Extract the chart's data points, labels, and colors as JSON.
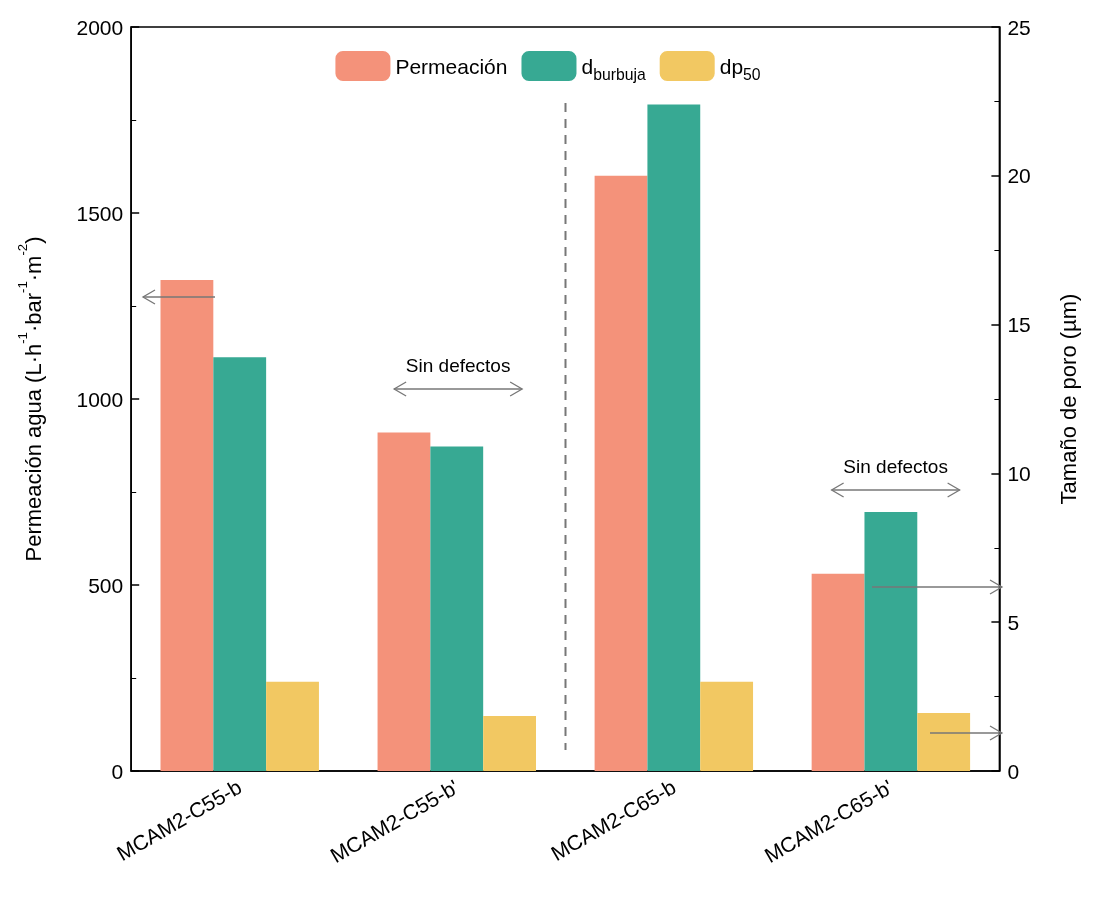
{
  "chart_data": {
    "type": "bar",
    "xlabel": null,
    "ylabel": "Permeación agua (L·h$^{-1}$·bar$^{-1}$·m$^{-2}$)",
    "y2label": "Tamaño de poro (µm)",
    "categories": [
      "MCAM2-C55-b",
      "MCAM2-C55-b'",
      "MCAM2-C65-b",
      "MCAM2-C65-b'"
    ],
    "series": [
      {
        "name": "Permeación",
        "color": "#f4927a",
        "values": [
          1320,
          910,
          1600,
          530
        ]
      },
      {
        "name": "d$_{burbuja}$",
        "color": "#37a993",
        "axis": "y2",
        "values": [
          13.9,
          10.9,
          22.4,
          8.7
        ]
      },
      {
        "name": "dp$_{50}$",
        "color": "#f2c862",
        "axis": "y2",
        "values": [
          3.0,
          1.85,
          3.0,
          1.95
        ]
      }
    ],
    "ylim": [
      0,
      2000
    ],
    "yticks": [
      0,
      500,
      1000,
      1500,
      2000
    ],
    "y2lim": [
      0,
      25
    ],
    "y2ticks": [
      0,
      5,
      10,
      15,
      20,
      25
    ],
    "annotations": [
      "Sin defectos",
      "Sin defectos"
    ],
    "grid": false,
    "legend": "top"
  }
}
